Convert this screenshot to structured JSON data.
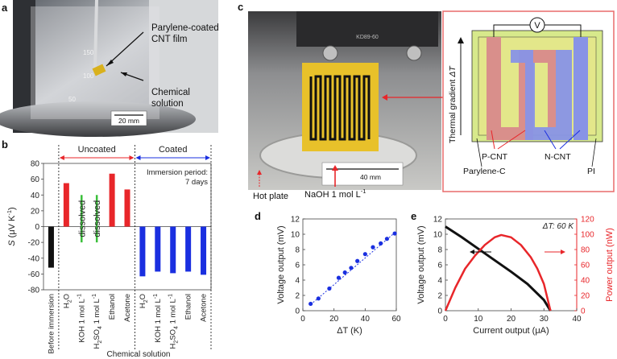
{
  "panel_letters": {
    "a": "a",
    "b": "b",
    "c": "c",
    "d": "d",
    "e": "e"
  },
  "colors": {
    "red": "#e8262a",
    "blue": "#1a2fe0",
    "green": "#3bbf3b",
    "black": "#111111",
    "pcnt": "#dc8b87",
    "ncnt": "#7f8ee8",
    "pi": "#dde38a",
    "device_border": "#e86b6b"
  },
  "panel_a": {
    "label_film": "Parylene-coated CNT film",
    "label_solution": "Chemical solution",
    "scale_bar": "20 mm",
    "beaker_marks": [
      "150",
      "100",
      "50"
    ]
  },
  "panel_c": {
    "hot_plate": "Hot plate",
    "naoh": "NaOH 1 mol L",
    "naoh_sup": "-1",
    "scale_bar": "40 mm",
    "device_code": "KD89-60",
    "diagram": {
      "voltmeter": "V",
      "thermal_gradient": "Thermal gradient",
      "delta_t": "ΔT",
      "p_cnt": "P-CNT",
      "n_cnt": "N-CNT",
      "parylene": "Parylene-C",
      "pi": "PI"
    }
  },
  "chart_data": [
    {
      "id": "b",
      "type": "bar",
      "ylabel_sym": "S",
      "ylabel_unit": "(μV K",
      "ylabel_sup": "-1",
      "ylabel_end": ")",
      "xlabel": "Chemical solution",
      "ylim": [
        -80,
        80
      ],
      "yticks": [
        -80,
        -60,
        -40,
        -20,
        0,
        20,
        40,
        60,
        80
      ],
      "group_uncoated": "Uncoated",
      "group_coated": "Coated",
      "annotation": "Immersion period: 7 days",
      "annotation_line1": "Immersion period:",
      "annotation_line2": "7 days",
      "dissolved_label": "dissolved",
      "categories": [
        "Before immersion",
        "H2O",
        "KOH 1 mol L-1",
        "H2SO4 1 mol L-1",
        "Ethanol",
        "Acetone",
        "H2O",
        "KOH 1 mol L-1",
        "H2SO4 1 mol L-1",
        "Ethanol",
        "Acetone"
      ],
      "category_parts": [
        {
          "main": "Before immersion",
          "sub": "",
          "mid": "",
          "sup": ""
        },
        {
          "main": "H",
          "sub": "2",
          "mid": "O",
          "sup": ""
        },
        {
          "main": "KOH 1 mol L",
          "sub": "",
          "mid": "",
          "sup": "-1"
        },
        {
          "main": "H",
          "sub": "2",
          "mid": "SO",
          "sub2": "4",
          "tail": " 1 mol L",
          "sup": "-1"
        },
        {
          "main": "Ethanol",
          "sub": "",
          "mid": "",
          "sup": ""
        },
        {
          "main": "Acetone",
          "sub": "",
          "mid": "",
          "sup": ""
        },
        {
          "main": "H",
          "sub": "2",
          "mid": "O",
          "sup": ""
        },
        {
          "main": "KOH 1 mol L",
          "sub": "",
          "mid": "",
          "sup": "-1"
        },
        {
          "main": "H",
          "sub": "2",
          "mid": "SO",
          "sub2": "4",
          "tail": " 1 mol L",
          "sup": "-1"
        },
        {
          "main": "Ethanol",
          "sub": "",
          "mid": "",
          "sup": ""
        },
        {
          "main": "Acetone",
          "sub": "",
          "mid": "",
          "sup": ""
        }
      ],
      "values": [
        -52,
        55,
        null,
        null,
        67,
        47,
        -63,
        -57,
        -59,
        -57,
        -61
      ],
      "bar_colors": [
        "black",
        "red",
        "none",
        "none",
        "red",
        "red",
        "blue",
        "blue",
        "blue",
        "blue",
        "blue"
      ]
    },
    {
      "id": "d",
      "type": "scatter",
      "xlabel": "ΔT (K)",
      "ylabel": "Voltage output (mV)",
      "xlim": [
        0,
        60
      ],
      "ylim": [
        0,
        12
      ],
      "xticks": [
        0,
        20,
        40,
        60
      ],
      "yticks": [
        0,
        2,
        4,
        6,
        8,
        10,
        12
      ],
      "x": [
        5,
        10,
        17,
        23,
        27,
        31,
        35,
        40,
        45,
        50,
        54,
        59
      ],
      "y": [
        0.9,
        1.6,
        2.9,
        4.3,
        5.0,
        5.6,
        6.5,
        7.4,
        8.3,
        8.8,
        9.4,
        10.1
      ],
      "fit": [
        [
          5,
          0.8
        ],
        [
          59,
          10.2
        ]
      ]
    },
    {
      "id": "e",
      "type": "line",
      "xlabel": "Current output (μA)",
      "ylabel_left": "Voltage output (mV)",
      "ylabel_right": "Power output (nW)",
      "annotation": "ΔT: 60 K",
      "xlim": [
        0,
        40
      ],
      "ylim_left": [
        0,
        12
      ],
      "ylim_right": [
        0,
        120
      ],
      "xticks": [
        0,
        10,
        20,
        30,
        40
      ],
      "yticks_left": [
        0,
        2,
        4,
        6,
        8,
        10,
        12
      ],
      "yticks_right": [
        0,
        20,
        40,
        60,
        80,
        100,
        120
      ],
      "voltage": {
        "x": [
          0,
          5,
          10,
          15,
          20,
          25,
          30,
          32
        ],
        "y": [
          11.0,
          9.6,
          8.1,
          6.6,
          5.1,
          3.5,
          1.4,
          0.0
        ]
      },
      "power": {
        "x": [
          0,
          3,
          6,
          9,
          12,
          15,
          17,
          20,
          23,
          26,
          28,
          30,
          32
        ],
        "y": [
          0,
          30,
          55,
          72,
          86,
          96,
          99,
          96,
          86,
          70,
          55,
          35,
          0
        ]
      }
    }
  ]
}
